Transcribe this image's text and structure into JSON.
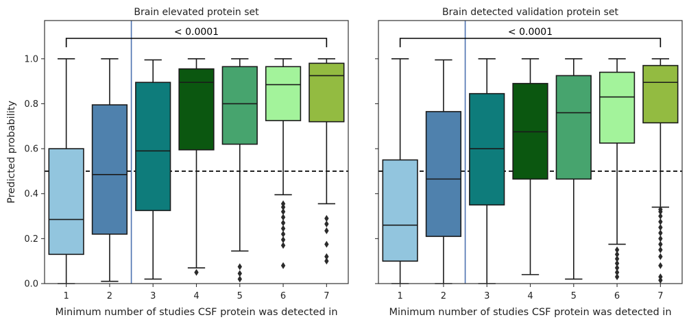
{
  "colors": {
    "box_fills": [
      "#92c5de",
      "#4f81ad",
      "#0e7c7b",
      "#0b5710",
      "#47a46e",
      "#a3f39b",
      "#93bb41"
    ],
    "threshold_line": "#000000",
    "split_line": "#4c72b0",
    "outline": "#1a1a1a"
  },
  "chart_data": [
    {
      "type": "box",
      "title": "Brain elevated protein set",
      "xlabel": "Minimum number of studies CSF protein was detected in",
      "ylabel": "Predicted probability",
      "ylim": [
        0,
        1.17
      ],
      "yticks": [
        "0.0",
        "0.2",
        "0.4",
        "0.6",
        "0.8",
        "1.0"
      ],
      "categories": [
        "1",
        "2",
        "3",
        "4",
        "5",
        "6",
        "7"
      ],
      "threshold": 0.5,
      "split_after_category": 2,
      "significance": {
        "from": "1",
        "to": "7",
        "label": "< 0.0001"
      },
      "boxes": [
        {
          "q1": 0.13,
          "median": 0.285,
          "q3": 0.6,
          "whisker_low": 0.0,
          "whisker_high": 1.0,
          "outliers": []
        },
        {
          "q1": 0.22,
          "median": 0.485,
          "q3": 0.795,
          "whisker_low": 0.01,
          "whisker_high": 1.0,
          "outliers": []
        },
        {
          "q1": 0.325,
          "median": 0.59,
          "q3": 0.895,
          "whisker_low": 0.02,
          "whisker_high": 0.995,
          "outliers": []
        },
        {
          "q1": 0.595,
          "median": 0.895,
          "q3": 0.955,
          "whisker_low": 0.07,
          "whisker_high": 1.0,
          "outliers": [
            0.05
          ]
        },
        {
          "q1": 0.62,
          "median": 0.8,
          "q3": 0.965,
          "whisker_low": 0.145,
          "whisker_high": 1.0,
          "outliers": [
            0.02,
            0.045,
            0.075
          ]
        },
        {
          "q1": 0.725,
          "median": 0.885,
          "q3": 0.965,
          "whisker_low": 0.395,
          "whisker_high": 1.0,
          "outliers": [
            0.08,
            0.17,
            0.195,
            0.22,
            0.245,
            0.27,
            0.295,
            0.32,
            0.34,
            0.355
          ]
        },
        {
          "q1": 0.72,
          "median": 0.925,
          "q3": 0.98,
          "whisker_low": 0.355,
          "whisker_high": 1.0,
          "outliers": [
            0.1,
            0.12,
            0.175,
            0.235,
            0.265,
            0.29
          ]
        }
      ]
    },
    {
      "type": "box",
      "title": "Brain detected validation protein set",
      "xlabel": "Minimum number of studies CSF protein was detected in",
      "ylabel": "",
      "ylim": [
        0,
        1.17
      ],
      "yticks": [
        "0.0",
        "0.2",
        "0.4",
        "0.6",
        "0.8",
        "1.0"
      ],
      "categories": [
        "1",
        "2",
        "3",
        "4",
        "5",
        "6",
        "7"
      ],
      "threshold": 0.5,
      "split_after_category": 2,
      "significance": {
        "from": "1",
        "to": "7",
        "label": "< 0.0001"
      },
      "boxes": [
        {
          "q1": 0.1,
          "median": 0.26,
          "q3": 0.55,
          "whisker_low": 0.0,
          "whisker_high": 1.0,
          "outliers": []
        },
        {
          "q1": 0.21,
          "median": 0.465,
          "q3": 0.765,
          "whisker_low": 0.0,
          "whisker_high": 0.995,
          "outliers": []
        },
        {
          "q1": 0.35,
          "median": 0.6,
          "q3": 0.845,
          "whisker_low": 0.0,
          "whisker_high": 1.0,
          "outliers": []
        },
        {
          "q1": 0.465,
          "median": 0.675,
          "q3": 0.89,
          "whisker_low": 0.04,
          "whisker_high": 1.0,
          "outliers": []
        },
        {
          "q1": 0.465,
          "median": 0.76,
          "q3": 0.925,
          "whisker_low": 0.02,
          "whisker_high": 1.0,
          "outliers": []
        },
        {
          "q1": 0.625,
          "median": 0.83,
          "q3": 0.94,
          "whisker_low": 0.175,
          "whisker_high": 1.0,
          "outliers": [
            0.03,
            0.05,
            0.07,
            0.09,
            0.11,
            0.13,
            0.15
          ]
        },
        {
          "q1": 0.715,
          "median": 0.895,
          "q3": 0.97,
          "whisker_low": 0.34,
          "whisker_high": 1.0,
          "outliers": [
            0.015,
            0.03,
            0.08,
            0.12,
            0.15,
            0.175,
            0.2,
            0.225,
            0.25,
            0.275,
            0.3,
            0.32,
            0.33
          ]
        }
      ]
    }
  ]
}
